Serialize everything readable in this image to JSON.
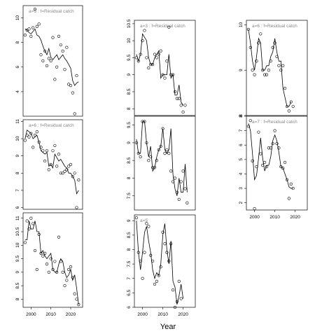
{
  "chart_data": {
    "type": "line",
    "xlabel": "Year",
    "x_ticks": [
      2000,
      2010,
      2020
    ],
    "x_range": [
      1996,
      2026
    ],
    "panels": [
      {
        "label": "a=5 : f=Residual catch",
        "ylim": [
          2.0,
          11.0
        ],
        "yticks": [
          4,
          6,
          8,
          10
        ],
        "x": [
          1997,
          1998,
          1999,
          2000,
          2001,
          2002,
          2003,
          2004,
          2005,
          2006,
          2007,
          2008,
          2009,
          2010,
          2011,
          2012,
          2013,
          2014,
          2015,
          2016,
          2017,
          2018,
          2019,
          2020,
          2021,
          2022,
          2023,
          2024
        ],
        "observed": [
          8.6,
          9.0,
          9.1,
          8.5,
          9.2,
          10.7,
          9.3,
          9.5,
          7.0,
          6.5,
          7.3,
          6.1,
          6.7,
          6.5,
          8.4,
          5.0,
          6.0,
          8.5,
          7.8,
          7.3,
          5.8,
          7.6,
          4.6,
          4.5,
          3.9,
          2.2,
          5.3,
          null
        ],
        "fitted": [
          9.1,
          9.0,
          8.8,
          8.7,
          8.9,
          9.1,
          8.6,
          8.5,
          8.2,
          7.7,
          7.3,
          7.0,
          7.5,
          6.8,
          6.6,
          6.8,
          7.0,
          6.6,
          6.8,
          7.0,
          6.7,
          6.5,
          6.2,
          5.9,
          4.9,
          4.5,
          4.7,
          4.8
        ]
      },
      {
        "label": "a=6 : f=Residual catch",
        "ylim": [
          5.9,
          11.1
        ],
        "yticks": [
          6,
          7,
          8,
          9,
          10,
          11
        ],
        "x": [
          1997,
          1998,
          1999,
          2000,
          2001,
          2002,
          2003,
          2004,
          2005,
          2006,
          2007,
          2008,
          2009,
          2010,
          2011,
          2012,
          2013,
          2014,
          2015,
          2016,
          2017,
          2018,
          2019,
          2020,
          2021,
          2022,
          2023,
          2024
        ],
        "observed": [
          9.9,
          10.2,
          10.1,
          10.3,
          9.5,
          10.2,
          10.4,
          9.8,
          9.5,
          9.3,
          8.7,
          9.3,
          8.2,
          8.5,
          9.3,
          9.6,
          8.4,
          9.1,
          8.0,
          8.0,
          8.1,
          8.2,
          8.4,
          8.5,
          7.8,
          8.0,
          6.0,
          7.6
        ],
        "fitted": [
          10.0,
          10.5,
          10.4,
          10.3,
          10.0,
          10.1,
          10.2,
          9.8,
          9.3,
          9.2,
          9.1,
          9.2,
          8.4,
          8.5,
          8.3,
          9.1,
          8.9,
          8.7,
          8.8,
          8.6,
          8.4,
          8.3,
          8.0,
          8.0,
          7.8,
          7.6,
          6.8,
          7.0
        ]
      },
      {
        "label": "",
        "ylim": [
          7.7,
          11.2
        ],
        "yticks": [
          8.0,
          8.5,
          9.0,
          9.5,
          10.0,
          10.5,
          11.0
        ],
        "x": [
          1997,
          1998,
          1999,
          2000,
          2001,
          2002,
          2003,
          2004,
          2005,
          2006,
          2007,
          2008,
          2009,
          2010,
          2011,
          2012,
          2013,
          2014,
          2015,
          2016,
          2017,
          2018,
          2019,
          2020,
          2021,
          2022,
          2023,
          2024
        ],
        "observed": [
          10.1,
          10.9,
          10.6,
          11.0,
          10.8,
          9.8,
          9.1,
          10.4,
          9.7,
          9.6,
          9.7,
          9.3,
          9.0,
          9.5,
          9.1,
          9.4,
          9.0,
          10.3,
          9.4,
          9.0,
          8.5,
          8.7,
          9.1,
          9.2,
          8.8,
          8.2,
          8.0,
          7.8
        ],
        "fitted": [
          10.2,
          10.2,
          10.9,
          10.6,
          10.6,
          10.9,
          10.5,
          10.5,
          9.7,
          9.8,
          9.6,
          9.5,
          9.6,
          9.7,
          9.1,
          9.0,
          9.0,
          9.3,
          9.5,
          9.4,
          9.0,
          8.8,
          8.9,
          9.1,
          8.7,
          8.9,
          8.4,
          7.8
        ]
      },
      {
        "label": "a=3 : f=Residual catch",
        "ylim": [
          7.8,
          10.6
        ],
        "yticks": [
          8.0,
          8.5,
          9.0,
          9.5,
          10.0,
          10.5
        ],
        "x": [
          1997,
          1998,
          1999,
          2000,
          2001,
          2002,
          2003,
          2004,
          2005,
          2006,
          2007,
          2008,
          2009,
          2010,
          2011,
          2012,
          2013,
          2014,
          2015,
          2016,
          2017,
          2018,
          2019,
          2020,
          2021,
          2022,
          2023,
          2024
        ],
        "observed": [
          9.5,
          9.4,
          9.6,
          10.0,
          10.3,
          9.5,
          9.2,
          9.3,
          9.3,
          9.6,
          9.5,
          9.6,
          9.7,
          9.0,
          8.9,
          9.4,
          10.4,
          9.0,
          9.0,
          8.5,
          8.3,
          8.3,
          8.1,
          7.9,
          8.1,
          null,
          null,
          null
        ],
        "fitted": [
          9.6,
          9.4,
          9.6,
          10.2,
          10.1,
          10.0,
          9.5,
          9.3,
          9.3,
          9.5,
          9.6,
          9.7,
          8.9,
          9.0,
          9.0,
          9.0,
          9.6,
          8.9,
          9.0,
          8.4,
          8.4,
          8.7,
          8.2,
          8.1,
          null,
          null,
          null,
          null
        ]
      },
      {
        "label": "",
        "ylim": [
          7.1,
          9.75
        ],
        "yticks": [
          7.5,
          8.0,
          8.5,
          9.0,
          9.5
        ],
        "x": [
          1997,
          1998,
          1999,
          2000,
          2001,
          2002,
          2003,
          2004,
          2005,
          2006,
          2007,
          2008,
          2009,
          2010,
          2011,
          2012,
          2013,
          2014,
          2015,
          2016,
          2017,
          2018,
          2019,
          2020,
          2021,
          2022,
          2023,
          2024
        ],
        "observed": [
          9.0,
          8.7,
          8.6,
          9.6,
          9.6,
          9.0,
          8.5,
          8.6,
          8.3,
          8.3,
          8.5,
          8.8,
          8.9,
          9.4,
          8.7,
          8.8,
          8.7,
          8.2,
          7.9,
          8.0,
          7.6,
          7.4,
          7.9,
          8.2,
          7.7,
          7.3,
          null,
          null
        ],
        "fitted": [
          9.1,
          8.7,
          8.7,
          9.6,
          9.6,
          9.0,
          8.6,
          8.9,
          8.2,
          8.3,
          8.6,
          8.8,
          8.9,
          9.4,
          8.8,
          8.7,
          8.8,
          9.4,
          8.1,
          7.7,
          7.5,
          8.0,
          7.6,
          7.6,
          8.4,
          7.6,
          null,
          null
        ]
      },
      {
        "label": "a=5",
        "ylim": [
          6.0,
          9.2
        ],
        "yticks": [
          6.0,
          6.5,
          7.0,
          7.5,
          8.0,
          8.5,
          9.0
        ],
        "x": [
          1997,
          1998,
          1999,
          2000,
          2001,
          2002,
          2003,
          2004,
          2005,
          2006,
          2007,
          2008,
          2009,
          2010,
          2011,
          2012,
          2013,
          2014,
          2015,
          2016,
          2017,
          2018,
          2019,
          2020,
          2021,
          2022,
          2023,
          2024
        ],
        "observed": [
          9.1,
          7.9,
          7.6,
          7.0,
          7.9,
          8.9,
          8.8,
          7.8,
          7.6,
          6.8,
          6.9,
          7.1,
          7.4,
          8.6,
          8.2,
          7.9,
          7.6,
          8.2,
          6.6,
          6.0,
          6.2,
          6.9,
          6.3,
          null,
          null,
          null,
          null,
          null
        ],
        "fitted": [
          9.0,
          7.9,
          7.3,
          7.9,
          8.6,
          8.8,
          8.3,
          7.9,
          7.3,
          7.0,
          7.2,
          7.1,
          7.5,
          8.5,
          8.9,
          8.0,
          7.5,
          8.3,
          6.9,
          6.7,
          6.1,
          6.4,
          6.8,
          6.3,
          null,
          null,
          null,
          null
        ]
      },
      {
        "label": "a=6 : f=Residual catch",
        "ylim": [
          8.0,
          10.1
        ],
        "yticks": [
          8,
          9,
          10
        ],
        "x": [
          1997,
          1998,
          1999,
          2000,
          2001,
          2002,
          2003,
          2004,
          2005,
          2006,
          2007,
          2008,
          2009,
          2010,
          2011,
          2012,
          2013,
          2014,
          2015,
          2016,
          2017,
          2018,
          2019,
          2020,
          2021,
          2022,
          2023,
          2024
        ],
        "observed": [
          9.9,
          9.5,
          9.0,
          8.9,
          9.2,
          9.6,
          9.8,
          9.0,
          8.9,
          8.9,
          9.0,
          9.2,
          9.5,
          9.6,
          9.3,
          9.1,
          9.0,
          9.1,
          8.6,
          8.2,
          8.1,
          8.3,
          8.2,
          null,
          null,
          null,
          null,
          null
        ],
        "fitted": [
          9.9,
          9.6,
          9.2,
          9.0,
          9.3,
          9.7,
          9.6,
          9.0,
          9.0,
          9.1,
          9.1,
          9.3,
          9.4,
          9.7,
          9.4,
          9.2,
          9.2,
          8.6,
          8.4,
          8.2,
          8.2,
          8.3,
          null,
          null,
          null,
          null,
          null,
          null
        ]
      },
      {
        "label": "a=7 : f=Residual catch",
        "ylim": [
          1.5,
          8.0
        ],
        "yticks": [
          2,
          3,
          4,
          5,
          6,
          7,
          8
        ],
        "x": [
          1997,
          1998,
          1999,
          2000,
          2001,
          2002,
          2003,
          2004,
          2005,
          2006,
          2007,
          2008,
          2009,
          2010,
          2011,
          2012,
          2013,
          2014,
          2015,
          2016,
          2017,
          2018,
          2019,
          2020,
          2021,
          2022,
          2023,
          2024
        ],
        "observed": [
          7.3,
          7.7,
          4.9,
          1.6,
          4.5,
          6.9,
          5.4,
          4.6,
          4.8,
          4.5,
          5.8,
          5.8,
          6.1,
          7.0,
          6.1,
          5.8,
          4.5,
          4.4,
          4.8,
          3.6,
          2.3,
          3.3,
          3.0,
          null,
          null,
          null,
          null,
          null
        ],
        "fitted": [
          7.5,
          7.0,
          5.4,
          3.6,
          3.9,
          5.1,
          6.5,
          5.1,
          4.2,
          4.6,
          4.6,
          5.2,
          6.3,
          6.7,
          6.3,
          5.5,
          4.5,
          4.4,
          4.0,
          3.6,
          3.1,
          3.0,
          3.0,
          null,
          null,
          null,
          null,
          null
        ]
      }
    ]
  }
}
